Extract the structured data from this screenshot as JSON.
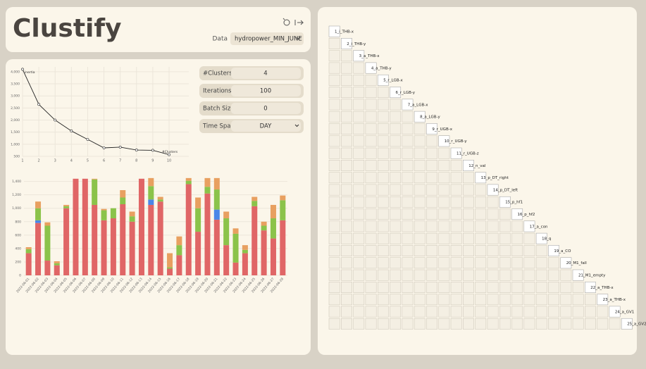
{
  "header": {
    "title": "Clustify",
    "data_label": "Data",
    "dataset": "hydropower_MIN_JUNE"
  },
  "controls": [
    {
      "label": "#Clusters",
      "value": 4
    },
    {
      "label": "Iterations",
      "value": 100
    },
    {
      "label": "Batch Size",
      "value": 0
    },
    {
      "label": "Time Span",
      "value": "DAY"
    }
  ],
  "chart_data": [
    {
      "type": "line",
      "x_label": "#Clusters",
      "y_label": "inertia",
      "x": [
        1,
        2,
        3,
        4,
        5,
        6,
        7,
        8,
        9,
        10
      ],
      "values": [
        4100,
        2650,
        2000,
        1550,
        1200,
        850,
        880,
        760,
        750,
        570
      ],
      "color": "#222222",
      "xlim": [
        1,
        10
      ],
      "ylim": [
        500,
        4200
      ],
      "xticks": [
        1,
        2,
        3,
        4,
        5,
        6,
        7,
        8,
        9,
        10
      ],
      "yticks": [
        500,
        {
          "value": 1000,
          "label": "1,000"
        },
        {
          "value": 1500,
          "label": "1,500"
        },
        {
          "value": 2000,
          "label": "2,000"
        },
        {
          "value": 2500,
          "label": "2,500"
        },
        {
          "value": 3000,
          "label": "3,000"
        },
        {
          "value": 3500,
          "label": "3,500"
        },
        {
          "value": 4000,
          "label": "4,000"
        }
      ],
      "grid": true
    },
    {
      "type": "stacked_bar",
      "categories": [
        "2022-06-01",
        "2022-06-02",
        "2022-06-03",
        "2022-06-04",
        "2022-06-05",
        "2022-06-06",
        "2022-06-07",
        "2022-06-08",
        "2022-06-09",
        "2022-06-10",
        "2022-06-11",
        "2022-06-12",
        "2022-06-13",
        "2022-06-14",
        "2022-06-15",
        "2022-06-16",
        "2022-06-17",
        "2022-06-18",
        "2022-06-19",
        "2022-06-20",
        "2022-06-21",
        "2022-06-22",
        "2022-06-23",
        "2022-06-24",
        "2022-06-25",
        "2022-06-26",
        "2022-06-27",
        "2022-06-28"
      ],
      "series": [
        {
          "color": "#e06666",
          "values": [
            330,
            780,
            220,
            150,
            1000,
            1440,
            1440,
            1050,
            820,
            850,
            1060,
            800,
            1440,
            1050,
            1100,
            100,
            300,
            1360,
            650,
            1220,
            830,
            450,
            190,
            330,
            1030,
            670,
            550,
            820
          ]
        },
        {
          "color": "#4a86e8",
          "values": [
            0,
            40,
            0,
            0,
            0,
            0,
            0,
            0,
            0,
            0,
            0,
            0,
            0,
            80,
            0,
            0,
            0,
            0,
            0,
            0,
            150,
            0,
            0,
            0,
            0,
            0,
            0,
            0
          ]
        },
        {
          "color": "#8bc34a",
          "values": [
            60,
            180,
            520,
            30,
            30,
            0,
            0,
            380,
            150,
            150,
            100,
            80,
            0,
            200,
            30,
            20,
            150,
            50,
            350,
            100,
            300,
            400,
            430,
            50,
            80,
            70,
            300,
            300
          ]
        },
        {
          "color": "#e8a060",
          "values": [
            30,
            100,
            50,
            30,
            20,
            0,
            0,
            10,
            20,
            0,
            110,
            70,
            0,
            120,
            40,
            210,
            130,
            40,
            160,
            130,
            170,
            100,
            80,
            70,
            60,
            60,
            200,
            70
          ]
        }
      ],
      "ylim": [
        0,
        1480
      ],
      "yticks": [
        0,
        200,
        400,
        600,
        800,
        {
          "value": 1000,
          "label": "1,000"
        },
        {
          "value": 1200,
          "label": "1,200"
        },
        {
          "value": 1400,
          "label": "1,400"
        }
      ],
      "grid": true
    }
  ],
  "scatter_matrix": {
    "variables": [
      "1_i_THB-x",
      "2_i_THB-y",
      "3_a_THB-x",
      "4_a_THB-y",
      "5_r_LGB-x",
      "6_r_LGB-y",
      "7_a_LGB-x",
      "8_a_LGB-y",
      "9_r_UGB-x",
      "10_r_UGB-y",
      "11_r_UGB-z",
      "12_n_val",
      "13_p_DT_right",
      "14_p_DT_left",
      "15_p_hf1",
      "16_p_hf2",
      "17_a_con",
      "18_q",
      "19_a_CO",
      "20_M1_fall",
      "21_M1_empty",
      "22_a_THB-x",
      "23_a_THB-x",
      "24_a_GV1",
      "25_a_GV2"
    ]
  }
}
